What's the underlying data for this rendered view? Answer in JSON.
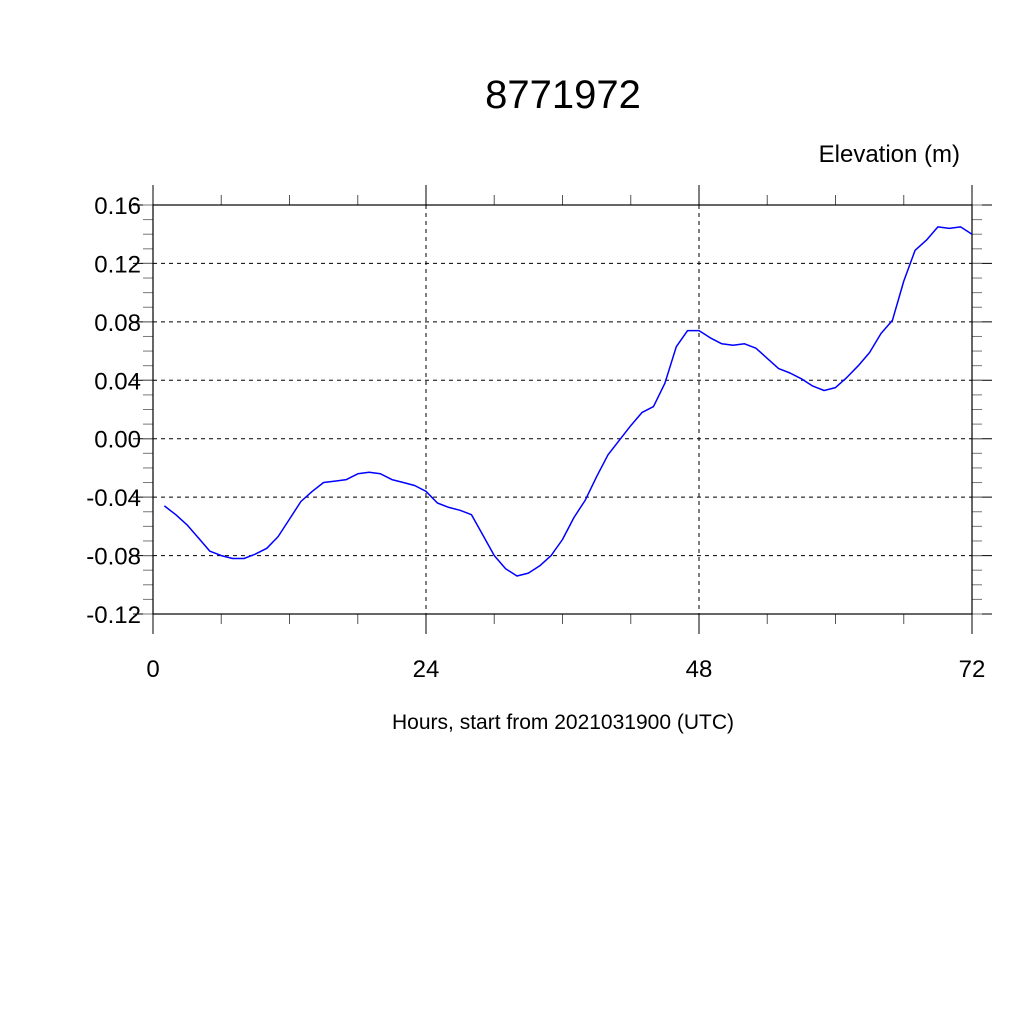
{
  "chart_data": {
    "type": "line",
    "title": "8771972",
    "subtitle": "Elevation (m)",
    "xlabel": "Hours, start from 2021031900 (UTC)",
    "ylabel": "",
    "xlim": [
      0,
      72
    ],
    "ylim": [
      -0.12,
      0.16
    ],
    "x_ticks": [
      0,
      24,
      48,
      72
    ],
    "x_tick_labels": [
      "0",
      "24",
      "48",
      "72"
    ],
    "x_minor_step": 6,
    "y_ticks": [
      0.16,
      0.12,
      0.08,
      0.04,
      0.0,
      -0.04,
      -0.08,
      -0.12
    ],
    "y_tick_labels": [
      "0.16",
      "0.12",
      "0.08",
      "0.04",
      "0.00",
      "-0.04",
      "-0.08",
      "-0.12"
    ],
    "y_minor_step": 0.01,
    "grid": true,
    "grid_style": "dashed",
    "series": [
      {
        "color": "#0000ff",
        "x": [
          1,
          2,
          3,
          4,
          5,
          6,
          7,
          8,
          9,
          10,
          11,
          12,
          13,
          14,
          15,
          16,
          17,
          18,
          19,
          20,
          21,
          22,
          23,
          24,
          25,
          26,
          27,
          28,
          29,
          30,
          31,
          32,
          33,
          34,
          35,
          36,
          37,
          38,
          39,
          40,
          41,
          42,
          43,
          44,
          45,
          46,
          47,
          48,
          49,
          50,
          51,
          52,
          53,
          54,
          55,
          56,
          57,
          58,
          59,
          60,
          61,
          62,
          63,
          64,
          65,
          66,
          67,
          68,
          69,
          70,
          71,
          72
        ],
        "values": [
          -0.046,
          -0.052,
          -0.059,
          -0.068,
          -0.077,
          -0.08,
          -0.082,
          -0.082,
          -0.079,
          -0.075,
          -0.067,
          -0.055,
          -0.043,
          -0.036,
          -0.03,
          -0.029,
          -0.028,
          -0.024,
          -0.023,
          -0.024,
          -0.028,
          -0.03,
          -0.032,
          -0.036,
          -0.044,
          -0.047,
          -0.049,
          -0.052,
          -0.066,
          -0.08,
          -0.089,
          -0.094,
          -0.092,
          -0.087,
          -0.08,
          -0.069,
          -0.054,
          -0.042,
          -0.026,
          -0.011,
          -0.001,
          0.009,
          0.018,
          0.022,
          0.038,
          0.063,
          0.074,
          0.074,
          0.069,
          0.065,
          0.064,
          0.065,
          0.062,
          0.055,
          0.048,
          0.045,
          0.041,
          0.036,
          0.033,
          0.035,
          0.042,
          0.05,
          0.059,
          0.072,
          0.081,
          0.108,
          0.129,
          0.136,
          0.145,
          0.144,
          0.145,
          0.14
        ]
      }
    ]
  }
}
